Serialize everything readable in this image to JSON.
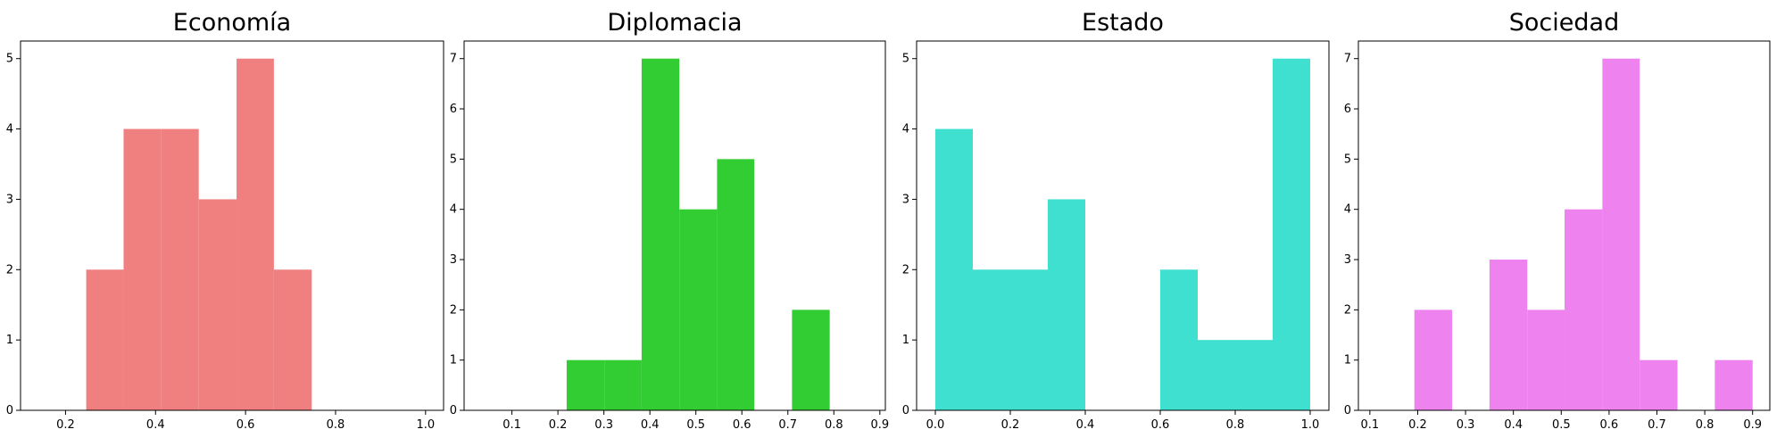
{
  "chart_data": [
    {
      "type": "histogram",
      "title": "Economía",
      "color": "#f08080",
      "bins": [
        0.246,
        0.329,
        0.413,
        0.496,
        0.58,
        0.663,
        0.747
      ],
      "values": [
        2,
        4,
        4,
        3,
        5,
        2
      ],
      "xlim": [
        0.1,
        1.04
      ],
      "ylim": [
        0,
        5.25
      ],
      "xticks": [
        0.2,
        0.4,
        0.6,
        0.8,
        {
          "value": 1.0,
          "label": "1.0"
        }
      ],
      "yticks": [
        0,
        1,
        2,
        3,
        4,
        5
      ]
    },
    {
      "type": "histogram",
      "title": "Diplomacia",
      "color": "#32cd32",
      "bins": [
        0.219,
        0.301,
        0.382,
        0.464,
        0.546,
        0.627,
        0.709,
        0.791
      ],
      "values": [
        1,
        1,
        7,
        4,
        5,
        0,
        2
      ],
      "xlim": [
        -0.004,
        0.912
      ],
      "ylim": [
        0,
        7.35
      ],
      "xticks": [
        0.1,
        0.2,
        0.3,
        0.4,
        0.5,
        0.6,
        0.7,
        0.8,
        0.9
      ],
      "yticks": [
        0,
        1,
        2,
        3,
        4,
        5,
        6,
        7
      ]
    },
    {
      "type": "histogram",
      "title": "Estado",
      "color": "#40e0d0",
      "bins": [
        0.0,
        0.1,
        0.2,
        0.3,
        0.4,
        0.5,
        0.6,
        0.7,
        0.8,
        0.9,
        1.0
      ],
      "values": [
        4,
        2,
        2,
        3,
        0,
        0,
        2,
        1,
        1,
        5
      ],
      "xlim": [
        -0.05,
        1.05
      ],
      "ylim": [
        0,
        5.25
      ],
      "xticks": [
        {
          "value": 0.0,
          "label": "0.0"
        },
        0.2,
        0.4,
        0.6,
        0.8,
        {
          "value": 1.0,
          "label": "1.0"
        }
      ],
      "yticks": [
        0,
        1,
        2,
        3,
        4,
        5
      ]
    },
    {
      "type": "histogram",
      "title": "Sociedad",
      "color": "#ee82ee",
      "bins": [
        0.193,
        0.272,
        0.35,
        0.429,
        0.507,
        0.586,
        0.664,
        0.743,
        0.821,
        0.9
      ],
      "values": [
        2,
        0,
        3,
        2,
        4,
        7,
        1,
        0,
        1
      ],
      "xlim": [
        0.076,
        0.936
      ],
      "ylim": [
        0,
        7.35
      ],
      "xticks": [
        0.1,
        0.2,
        0.3,
        0.4,
        0.5,
        0.6,
        0.7,
        0.8,
        0.9
      ],
      "yticks": [
        0,
        1,
        2,
        3,
        4,
        5,
        6,
        7
      ]
    }
  ]
}
